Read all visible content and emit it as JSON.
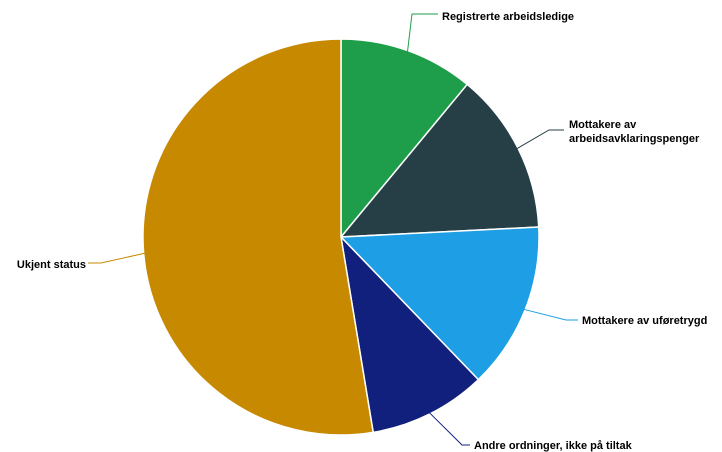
{
  "chart_data": {
    "type": "pie",
    "title": "",
    "start_angle_deg": 0,
    "direction": "clockwise",
    "legend": "none",
    "slices": [
      {
        "name": "Registrerte arbeidsledige",
        "lines": [
          "Registrerte arbeidsledige"
        ],
        "value": 11.0,
        "color": "#1e9e4a",
        "line_color": "#1e9e4a"
      },
      {
        "name": "Mottakere av arbeidsavklaringspenger",
        "lines": [
          "Mottakere av",
          "arbeidsavklaringspenger"
        ],
        "value": 13.2,
        "color": "#263f46",
        "line_color": "#263f46"
      },
      {
        "name": "Mottakere av uføretrygd",
        "lines": [
          "Mottakere av uføretrygd"
        ],
        "value": 13.6,
        "color": "#1e9ee5",
        "line_color": "#1e9ee5"
      },
      {
        "name": "Andre ordninger, ikke på tiltak",
        "lines": [
          "Andre ordninger, ikke på tiltak"
        ],
        "value": 9.6,
        "color": "#10207c",
        "line_color": "#10207c"
      },
      {
        "name": "Ukjent status",
        "lines": [
          "Ukjent status"
        ],
        "value": 52.6,
        "color": "#c78900",
        "line_color": "#c78900"
      }
    ]
  }
}
